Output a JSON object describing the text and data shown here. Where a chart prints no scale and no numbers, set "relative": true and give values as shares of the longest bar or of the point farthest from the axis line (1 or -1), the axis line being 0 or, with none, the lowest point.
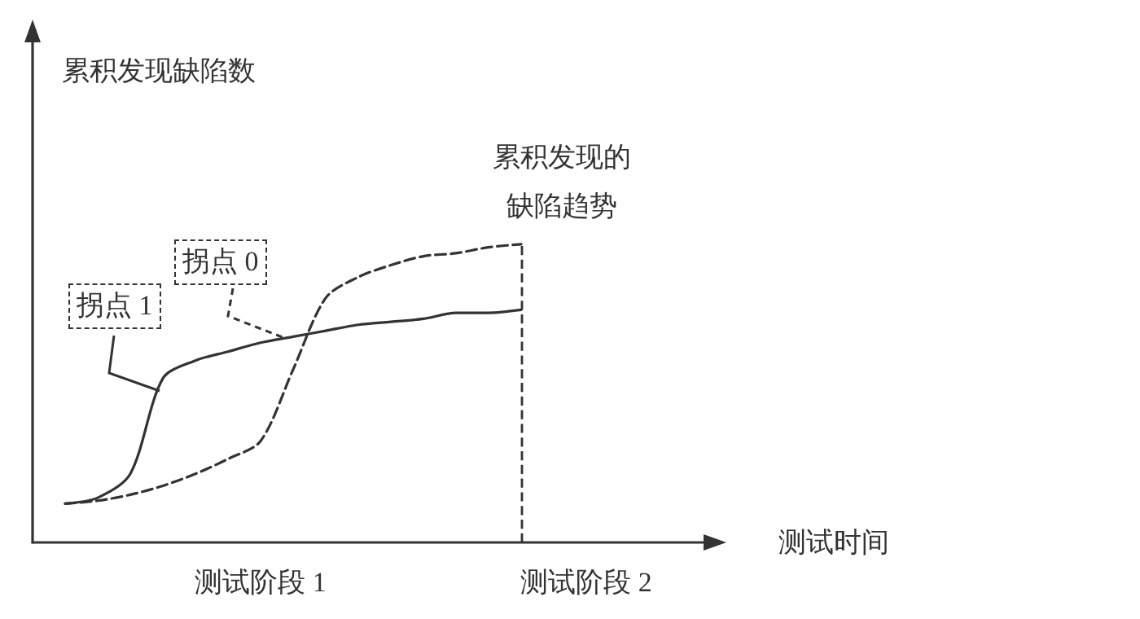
{
  "chart_data": {
    "type": "line",
    "relative": true,
    "xlabel": "测试时间",
    "categories": [
      null,
      null,
      null,
      null,
      null,
      null,
      null,
      "测试阶段 1",
      null,
      null,
      null,
      null,
      null,
      null,
      null,
      null,
      null,
      "测试阶段 2",
      null,
      null,
      null,
      null
    ],
    "series": [
      {
        "color": "#333333",
        "line_style": "solid",
        "values": [
          null,
          0.13,
          0.15,
          0.23,
          0.55,
          0.61,
          0.64,
          0.67,
          0.69,
          0.71,
          0.73,
          0.74,
          0.75,
          0.77,
          0.77,
          0.78,
          null,
          null,
          null,
          null,
          null,
          null
        ]
      },
      {
        "color": "#333333",
        "line_style": "dashed",
        "values": [
          null,
          0.13,
          0.14,
          0.16,
          0.19,
          0.23,
          0.28,
          0.34,
          0.58,
          0.82,
          0.89,
          0.93,
          0.96,
          0.97,
          0.99,
          1,
          null,
          null,
          null,
          null,
          null,
          null
        ]
      }
    ],
    "annotations": [
      "累积发现缺陷数",
      "拐点 1",
      "拐点 0",
      "累积发现的缺陷趋势"
    ],
    "marker": "none"
  }
}
